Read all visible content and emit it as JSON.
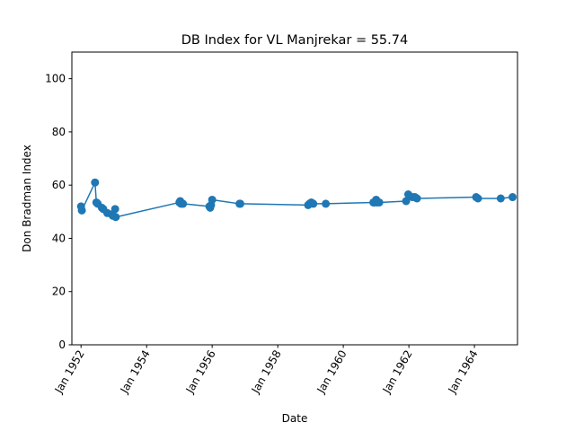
{
  "chart_data": {
    "type": "line",
    "title": "DB Index for VL Manjrekar = 55.74",
    "xlabel": "Date",
    "ylabel": "Don Bradman Index",
    "ylim": [
      0,
      110
    ],
    "xlim": [
      "1951-09-21",
      "1965-04-25"
    ],
    "yticks": [
      0,
      20,
      40,
      60,
      80,
      100
    ],
    "xticks": [
      {
        "date": "1952-01-01",
        "label": "Jan 1952"
      },
      {
        "date": "1954-01-01",
        "label": "Jan 1954"
      },
      {
        "date": "1956-01-01",
        "label": "Jan 1956"
      },
      {
        "date": "1958-01-01",
        "label": "Jan 1958"
      },
      {
        "date": "1960-01-01",
        "label": "Jan 1960"
      },
      {
        "date": "1962-01-01",
        "label": "Jan 1962"
      },
      {
        "date": "1964-01-01",
        "label": "Jan 1964"
      }
    ],
    "grid": false,
    "legend": "none",
    "series": [
      {
        "color": "#1f77b4",
        "marker": "circle",
        "x": [
          "1952-01-01",
          "1952-01-10",
          "1952-06-05",
          "1952-06-20",
          "1952-07-05",
          "1952-08-20",
          "1952-09-05",
          "1952-10-20",
          "1952-12-10",
          "1952-12-20",
          "1953-01-15",
          "1953-01-22",
          "1955-01-01",
          "1955-01-10",
          "1955-01-20",
          "1955-02-10",
          "1955-12-01",
          "1955-12-10",
          "1955-12-20",
          "1956-01-01",
          "1956-11-01",
          "1956-11-10",
          "1958-12-05",
          "1958-12-20",
          "1959-01-10",
          "1959-02-01",
          "1959-06-20",
          "1960-12-01",
          "1960-12-15",
          "1961-01-01",
          "1961-01-10",
          "1961-02-05",
          "1961-12-01",
          "1961-12-25",
          "1962-02-10",
          "1962-03-10",
          "1962-04-01",
          "1964-01-20",
          "1964-02-10",
          "1964-10-20",
          "1965-03-01"
        ],
        "y": [
          52,
          50.5,
          61,
          53.5,
          53,
          51.5,
          51,
          49.5,
          49,
          48.5,
          51,
          48,
          53.5,
          54,
          53,
          53,
          52,
          51.5,
          52.5,
          54.5,
          53,
          53,
          52.5,
          53,
          53.5,
          53,
          53,
          53.5,
          53.5,
          54.5,
          53.5,
          53.5,
          54,
          56.5,
          55.5,
          55.5,
          55,
          55.5,
          55,
          55,
          55.5
        ]
      }
    ]
  }
}
